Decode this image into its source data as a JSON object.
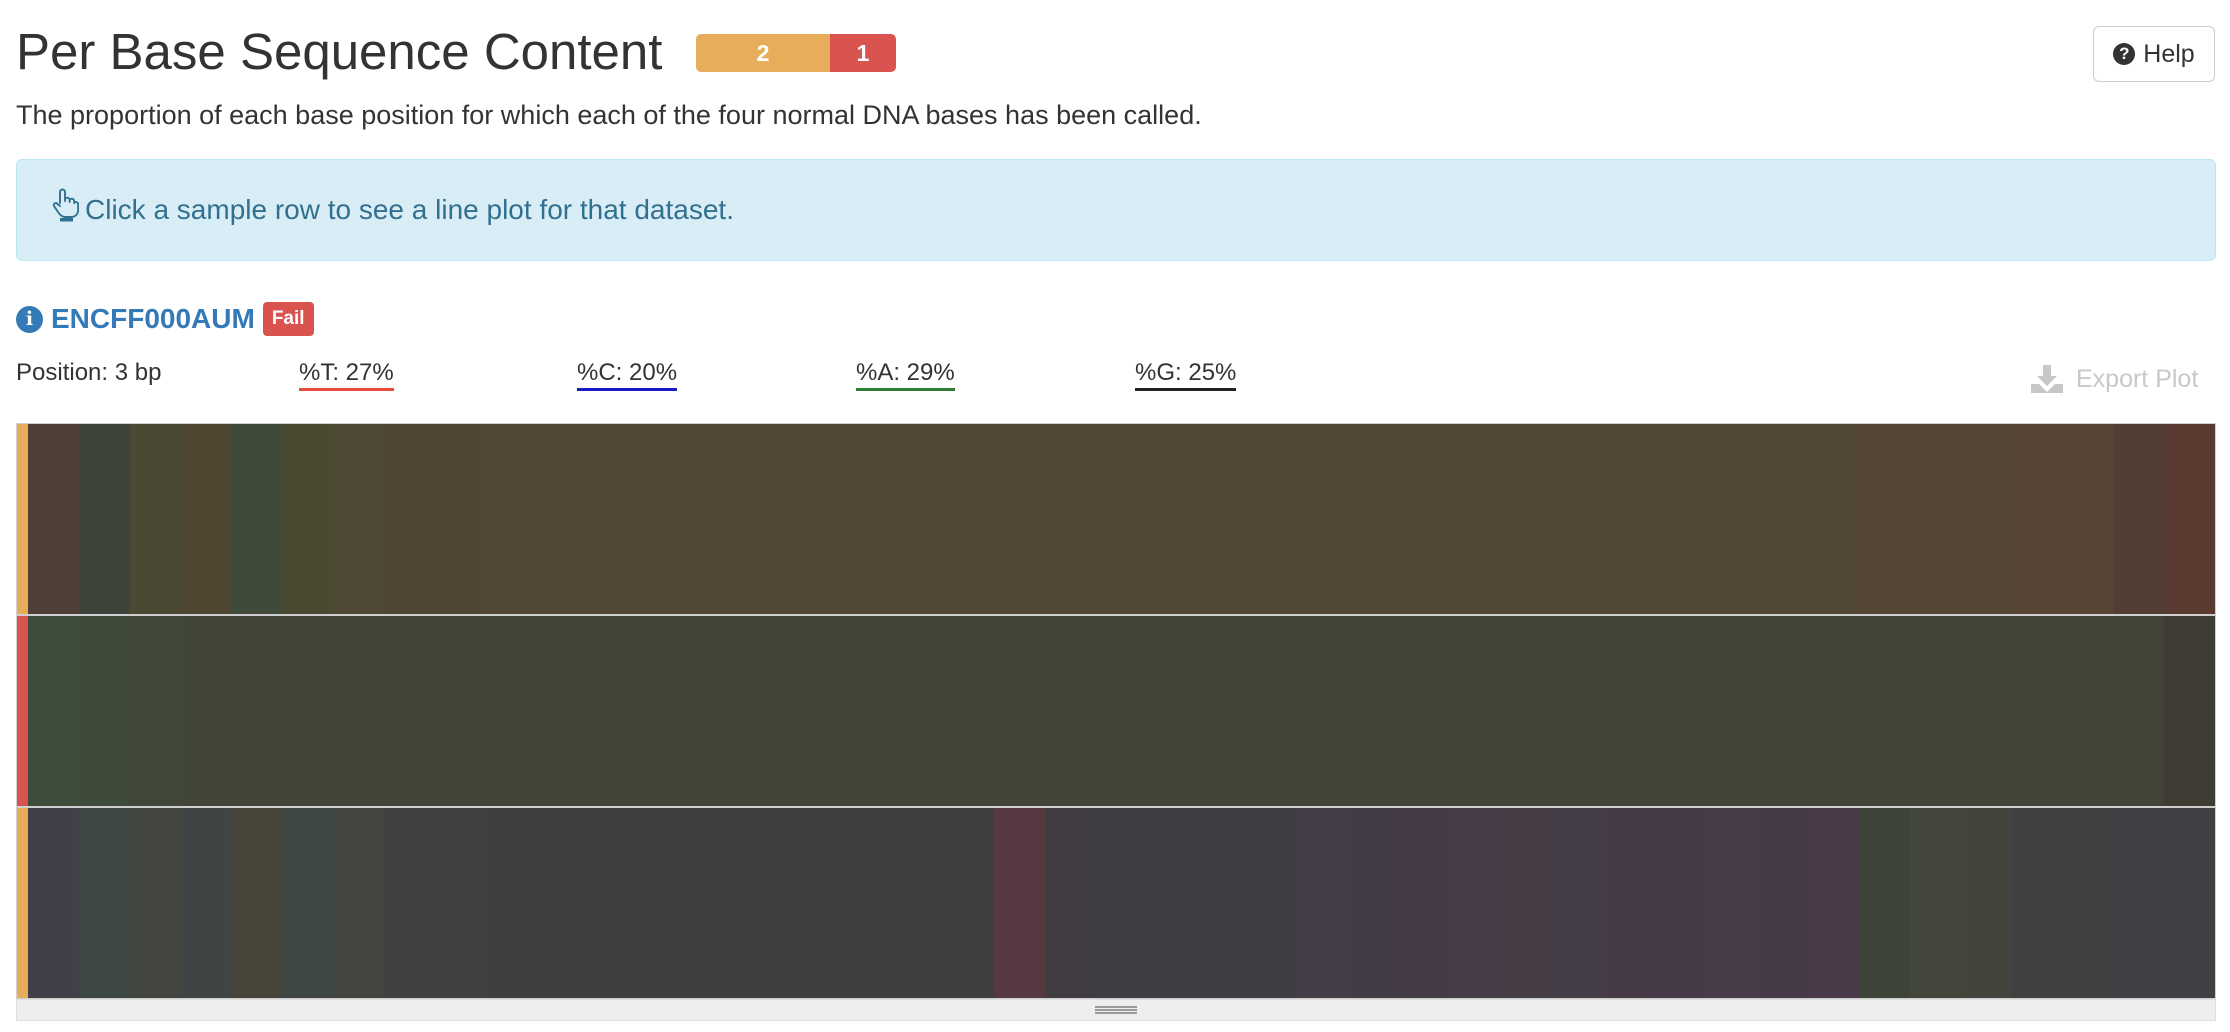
{
  "section": {
    "title": "Per Base Sequence Content",
    "description": "The proportion of each base position for which each of the four normal DNA bases has been called.",
    "help_label": "Help",
    "status_counts": [
      {
        "status": "warn",
        "count": "2",
        "color": "#e7ad5b"
      },
      {
        "status": "fail",
        "count": "1",
        "color": "#d9534f"
      }
    ]
  },
  "info_box": {
    "text": "Click a sample row to see a line plot for that dataset.",
    "icon": "hand-pointer-icon"
  },
  "sample": {
    "name": "ENCFF000AUM",
    "badge": "Fail"
  },
  "readout": {
    "position": "Position: 3 bp",
    "t": "%T: 27%",
    "c": "%C: 20%",
    "a": "%A: 29%",
    "g": "%G: 25%",
    "underline_colors": {
      "t": "#e74c3c",
      "c": "#1a1ac8",
      "a": "#2e7d32",
      "g": "#222222"
    }
  },
  "export_label": "Export Plot",
  "heatmap": {
    "rows": [
      {
        "status": "warn",
        "status_color": "#e7ad5b",
        "base_color": "#524736",
        "cells": [
          "#4d3f35",
          "#3d4338",
          "#4b4834",
          "#4f4632",
          "#3f4a38",
          "#4a4a33",
          "#504836",
          "#4e4535",
          "#504636",
          "#524736",
          "#524736",
          "#524736",
          "#524736",
          "#524736",
          "#524736",
          "#524736",
          "#524736",
          "#524736",
          "#524736",
          "#524736",
          "#524736",
          "#524736",
          "#524736",
          "#524736",
          "#524736",
          "#524736",
          "#524736",
          "#524736",
          "#524736",
          "#524736",
          "#524736",
          "#524736",
          "#524736",
          "#524736",
          "#524736",
          "#524736",
          "#534635",
          "#554535",
          "#554535",
          "#574535",
          "#574535",
          "#533e35",
          "#5a3a30"
        ]
      },
      {
        "status": "fail",
        "status_color": "#d9534f",
        "base_color": "#434338",
        "cells": [
          "#3d4d3a",
          "#3f4b3a",
          "#414839",
          "#424638",
          "#434438",
          "#434438",
          "#434438",
          "#434438",
          "#434438",
          "#434438",
          "#434438",
          "#434438",
          "#434438",
          "#434438",
          "#434438",
          "#434438",
          "#434438",
          "#434438",
          "#434438",
          "#434438",
          "#434438",
          "#434438",
          "#434438",
          "#434438",
          "#434438",
          "#434438",
          "#434438",
          "#434438",
          "#434438",
          "#434438",
          "#434438",
          "#434438",
          "#434438",
          "#434438",
          "#434438",
          "#434438",
          "#434438",
          "#434438",
          "#434438",
          "#434438",
          "#434438",
          "#434438",
          "#3f3c33"
        ]
      },
      {
        "status": "warn",
        "status_color": "#e7ad5b",
        "base_color": "#3f3f3f",
        "cells": [
          "#433f48",
          "#3d4746",
          "#434540",
          "#414444",
          "#48443a",
          "#3e4744",
          "#434540",
          "#404240",
          "#413f3f",
          "#3f3f3f",
          "#3f3f3f",
          "#3f3f3f",
          "#3f3f3f",
          "#3f3f3f",
          "#3f3f3f",
          "#3f3f3f",
          "#3f3f3f",
          "#3f3f3f",
          "#3f3f3f",
          "#553840",
          "#403c42",
          "#3f3e43",
          "#3f3e43",
          "#3f3e44",
          "#413d45",
          "#423d46",
          "#433c46",
          "#443b46",
          "#463c47",
          "#453c46",
          "#443c46",
          "#463a47",
          "#463a48",
          "#473a49",
          "#463a48",
          "#4a3a4a",
          "#3e4437",
          "#43463a",
          "#42453b",
          "#413f3f",
          "#434043",
          "#423f45",
          "#423f45"
        ]
      }
    ]
  }
}
